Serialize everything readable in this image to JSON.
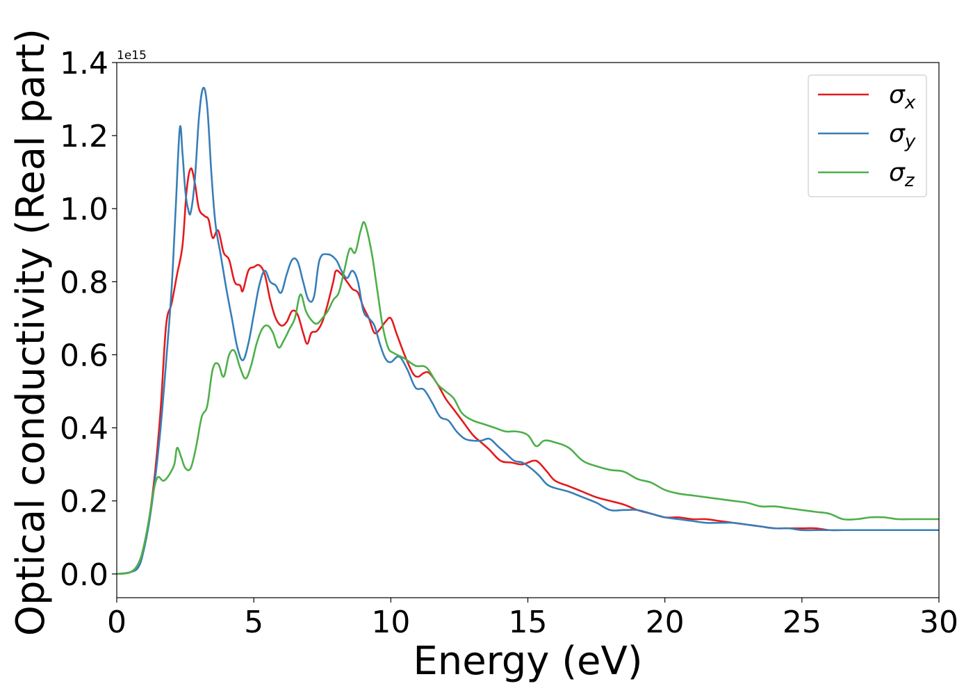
{
  "chart_data": {
    "type": "line",
    "xlabel": "Energy (eV)",
    "ylabel": "Optical conductivity (Real part)",
    "y_offset_label": "1e15",
    "xlim": [
      0,
      30
    ],
    "ylim": [
      -0.065,
      1.4
    ],
    "x_ticks": [
      0,
      5,
      10,
      15,
      20,
      25,
      30
    ],
    "y_ticks": [
      0.0,
      0.2,
      0.4,
      0.6,
      0.8,
      1.0,
      1.2,
      1.4
    ],
    "x_tick_labels": [
      "0",
      "5",
      "10",
      "15",
      "20",
      "25",
      "30"
    ],
    "y_tick_labels": [
      "0.0",
      "0.2",
      "0.4",
      "0.6",
      "0.8",
      "1.0",
      "1.2",
      "1.4"
    ],
    "grid": false,
    "legend_position": "top-right",
    "series": [
      {
        "name": "σ",
        "subscript": "x",
        "color": "#e41a1c",
        "points": [
          [
            0,
            0
          ],
          [
            0.5,
            0.005
          ],
          [
            0.8,
            0.03
          ],
          [
            1.0,
            0.08
          ],
          [
            1.2,
            0.16
          ],
          [
            1.4,
            0.28
          ],
          [
            1.6,
            0.45
          ],
          [
            1.8,
            0.68
          ],
          [
            2.0,
            0.74
          ],
          [
            2.2,
            0.82
          ],
          [
            2.4,
            0.9
          ],
          [
            2.55,
            1.05
          ],
          [
            2.7,
            1.11
          ],
          [
            2.85,
            1.07
          ],
          [
            3.0,
            1.0
          ],
          [
            3.2,
            0.98
          ],
          [
            3.35,
            0.97
          ],
          [
            3.5,
            0.92
          ],
          [
            3.7,
            0.94
          ],
          [
            3.9,
            0.88
          ],
          [
            4.1,
            0.86
          ],
          [
            4.3,
            0.8
          ],
          [
            4.5,
            0.79
          ],
          [
            4.6,
            0.775
          ],
          [
            4.8,
            0.83
          ],
          [
            5.0,
            0.84
          ],
          [
            5.2,
            0.845
          ],
          [
            5.4,
            0.82
          ],
          [
            5.6,
            0.75
          ],
          [
            5.8,
            0.7
          ],
          [
            6.0,
            0.68
          ],
          [
            6.2,
            0.69
          ],
          [
            6.4,
            0.72
          ],
          [
            6.6,
            0.71
          ],
          [
            6.8,
            0.66
          ],
          [
            6.95,
            0.63
          ],
          [
            7.1,
            0.66
          ],
          [
            7.3,
            0.665
          ],
          [
            7.5,
            0.69
          ],
          [
            7.7,
            0.74
          ],
          [
            7.9,
            0.8
          ],
          [
            8.0,
            0.83
          ],
          [
            8.2,
            0.82
          ],
          [
            8.4,
            0.8
          ],
          [
            8.6,
            0.78
          ],
          [
            8.8,
            0.77
          ],
          [
            9.0,
            0.73
          ],
          [
            9.2,
            0.7
          ],
          [
            9.4,
            0.66
          ],
          [
            9.6,
            0.67
          ],
          [
            9.8,
            0.69
          ],
          [
            10.0,
            0.7
          ],
          [
            10.2,
            0.66
          ],
          [
            10.5,
            0.6
          ],
          [
            10.8,
            0.55
          ],
          [
            11.0,
            0.54
          ],
          [
            11.2,
            0.55
          ],
          [
            11.4,
            0.55
          ],
          [
            11.7,
            0.52
          ],
          [
            12.0,
            0.48
          ],
          [
            12.3,
            0.45
          ],
          [
            12.6,
            0.42
          ],
          [
            13.0,
            0.38
          ],
          [
            13.3,
            0.36
          ],
          [
            13.6,
            0.34
          ],
          [
            14.0,
            0.31
          ],
          [
            14.4,
            0.305
          ],
          [
            14.8,
            0.3
          ],
          [
            15.2,
            0.31
          ],
          [
            15.4,
            0.305
          ],
          [
            15.7,
            0.28
          ],
          [
            16.0,
            0.255
          ],
          [
            16.5,
            0.24
          ],
          [
            17.0,
            0.225
          ],
          [
            17.5,
            0.21
          ],
          [
            18.0,
            0.2
          ],
          [
            18.5,
            0.19
          ],
          [
            19.0,
            0.175
          ],
          [
            19.5,
            0.165
          ],
          [
            20.0,
            0.155
          ],
          [
            20.5,
            0.155
          ],
          [
            21.0,
            0.15
          ],
          [
            21.5,
            0.15
          ],
          [
            22.0,
            0.145
          ],
          [
            22.5,
            0.14
          ],
          [
            23.0,
            0.135
          ],
          [
            23.5,
            0.13
          ],
          [
            24.0,
            0.125
          ],
          [
            24.5,
            0.125
          ],
          [
            25.0,
            0.125
          ],
          [
            25.5,
            0.125
          ],
          [
            26.0,
            0.12
          ],
          [
            26.5,
            0.12
          ],
          [
            27.0,
            0.12
          ],
          [
            27.5,
            0.12
          ],
          [
            28.0,
            0.12
          ],
          [
            28.5,
            0.12
          ],
          [
            29.0,
            0.12
          ],
          [
            29.5,
            0.12
          ],
          [
            30.0,
            0.12
          ]
        ]
      },
      {
        "name": "σ",
        "subscript": "y",
        "color": "#377eb8",
        "points": [
          [
            0,
            0
          ],
          [
            0.5,
            0.005
          ],
          [
            0.8,
            0.02
          ],
          [
            1.0,
            0.07
          ],
          [
            1.2,
            0.15
          ],
          [
            1.4,
            0.26
          ],
          [
            1.6,
            0.4
          ],
          [
            1.8,
            0.58
          ],
          [
            2.0,
            0.78
          ],
          [
            2.15,
            1.0
          ],
          [
            2.3,
            1.22
          ],
          [
            2.4,
            1.15
          ],
          [
            2.5,
            1.05
          ],
          [
            2.6,
            1.0
          ],
          [
            2.7,
            0.99
          ],
          [
            2.85,
            1.08
          ],
          [
            3.0,
            1.25
          ],
          [
            3.15,
            1.33
          ],
          [
            3.3,
            1.28
          ],
          [
            3.45,
            1.1
          ],
          [
            3.6,
            0.96
          ],
          [
            3.8,
            0.87
          ],
          [
            4.0,
            0.78
          ],
          [
            4.2,
            0.7
          ],
          [
            4.4,
            0.62
          ],
          [
            4.6,
            0.585
          ],
          [
            4.8,
            0.63
          ],
          [
            5.0,
            0.71
          ],
          [
            5.2,
            0.79
          ],
          [
            5.4,
            0.83
          ],
          [
            5.6,
            0.8
          ],
          [
            5.8,
            0.79
          ],
          [
            6.0,
            0.77
          ],
          [
            6.2,
            0.82
          ],
          [
            6.4,
            0.86
          ],
          [
            6.6,
            0.855
          ],
          [
            6.8,
            0.8
          ],
          [
            7.0,
            0.75
          ],
          [
            7.2,
            0.76
          ],
          [
            7.4,
            0.86
          ],
          [
            7.7,
            0.875
          ],
          [
            8.0,
            0.86
          ],
          [
            8.2,
            0.83
          ],
          [
            8.4,
            0.81
          ],
          [
            8.6,
            0.83
          ],
          [
            8.8,
            0.8
          ],
          [
            9.0,
            0.72
          ],
          [
            9.2,
            0.7
          ],
          [
            9.4,
            0.68
          ],
          [
            9.6,
            0.63
          ],
          [
            9.8,
            0.59
          ],
          [
            10.0,
            0.58
          ],
          [
            10.3,
            0.595
          ],
          [
            10.6,
            0.56
          ],
          [
            10.9,
            0.51
          ],
          [
            11.2,
            0.505
          ],
          [
            11.5,
            0.47
          ],
          [
            11.8,
            0.43
          ],
          [
            12.1,
            0.42
          ],
          [
            12.4,
            0.39
          ],
          [
            12.7,
            0.37
          ],
          [
            13.0,
            0.365
          ],
          [
            13.3,
            0.365
          ],
          [
            13.6,
            0.37
          ],
          [
            13.9,
            0.35
          ],
          [
            14.2,
            0.33
          ],
          [
            14.5,
            0.31
          ],
          [
            14.8,
            0.305
          ],
          [
            15.1,
            0.29
          ],
          [
            15.4,
            0.27
          ],
          [
            15.7,
            0.245
          ],
          [
            16.0,
            0.235
          ],
          [
            16.5,
            0.225
          ],
          [
            17.0,
            0.21
          ],
          [
            17.5,
            0.195
          ],
          [
            18.0,
            0.175
          ],
          [
            18.5,
            0.175
          ],
          [
            19.0,
            0.175
          ],
          [
            19.5,
            0.165
          ],
          [
            20.0,
            0.155
          ],
          [
            20.5,
            0.15
          ],
          [
            21.0,
            0.145
          ],
          [
            21.5,
            0.14
          ],
          [
            22.0,
            0.14
          ],
          [
            22.5,
            0.14
          ],
          [
            23.0,
            0.135
          ],
          [
            23.5,
            0.13
          ],
          [
            24.0,
            0.125
          ],
          [
            24.5,
            0.125
          ],
          [
            25.0,
            0.12
          ],
          [
            25.5,
            0.12
          ],
          [
            26.0,
            0.12
          ],
          [
            26.5,
            0.12
          ],
          [
            27.0,
            0.12
          ],
          [
            27.5,
            0.12
          ],
          [
            28.0,
            0.12
          ],
          [
            28.5,
            0.12
          ],
          [
            29.0,
            0.12
          ],
          [
            29.5,
            0.12
          ],
          [
            30.0,
            0.12
          ]
        ]
      },
      {
        "name": "σ",
        "subscript": "z",
        "color": "#4daf4a",
        "points": [
          [
            0,
            0
          ],
          [
            0.5,
            0.005
          ],
          [
            0.8,
            0.03
          ],
          [
            1.0,
            0.08
          ],
          [
            1.2,
            0.16
          ],
          [
            1.35,
            0.23
          ],
          [
            1.5,
            0.265
          ],
          [
            1.7,
            0.255
          ],
          [
            1.9,
            0.27
          ],
          [
            2.1,
            0.3
          ],
          [
            2.2,
            0.345
          ],
          [
            2.35,
            0.32
          ],
          [
            2.5,
            0.29
          ],
          [
            2.7,
            0.29
          ],
          [
            2.9,
            0.35
          ],
          [
            3.1,
            0.43
          ],
          [
            3.3,
            0.46
          ],
          [
            3.5,
            0.56
          ],
          [
            3.7,
            0.575
          ],
          [
            3.9,
            0.54
          ],
          [
            4.1,
            0.6
          ],
          [
            4.3,
            0.61
          ],
          [
            4.5,
            0.565
          ],
          [
            4.7,
            0.535
          ],
          [
            4.9,
            0.57
          ],
          [
            5.1,
            0.63
          ],
          [
            5.3,
            0.67
          ],
          [
            5.5,
            0.68
          ],
          [
            5.7,
            0.66
          ],
          [
            5.9,
            0.62
          ],
          [
            6.1,
            0.64
          ],
          [
            6.3,
            0.67
          ],
          [
            6.5,
            0.7
          ],
          [
            6.7,
            0.765
          ],
          [
            6.9,
            0.72
          ],
          [
            7.1,
            0.695
          ],
          [
            7.3,
            0.685
          ],
          [
            7.5,
            0.7
          ],
          [
            7.7,
            0.72
          ],
          [
            7.9,
            0.75
          ],
          [
            8.1,
            0.77
          ],
          [
            8.3,
            0.83
          ],
          [
            8.5,
            0.89
          ],
          [
            8.7,
            0.88
          ],
          [
            8.9,
            0.94
          ],
          [
            9.05,
            0.96
          ],
          [
            9.3,
            0.88
          ],
          [
            9.5,
            0.78
          ],
          [
            9.7,
            0.68
          ],
          [
            9.9,
            0.62
          ],
          [
            10.1,
            0.605
          ],
          [
            10.5,
            0.59
          ],
          [
            10.9,
            0.57
          ],
          [
            11.3,
            0.565
          ],
          [
            11.7,
            0.52
          ],
          [
            12.0,
            0.5
          ],
          [
            12.3,
            0.48
          ],
          [
            12.6,
            0.44
          ],
          [
            13.0,
            0.42
          ],
          [
            13.4,
            0.41
          ],
          [
            13.8,
            0.4
          ],
          [
            14.2,
            0.39
          ],
          [
            14.6,
            0.39
          ],
          [
            15.0,
            0.38
          ],
          [
            15.3,
            0.35
          ],
          [
            15.6,
            0.365
          ],
          [
            16.0,
            0.36
          ],
          [
            16.5,
            0.345
          ],
          [
            17.0,
            0.31
          ],
          [
            17.5,
            0.295
          ],
          [
            18.0,
            0.285
          ],
          [
            18.5,
            0.28
          ],
          [
            19.0,
            0.26
          ],
          [
            19.5,
            0.25
          ],
          [
            20.0,
            0.23
          ],
          [
            20.5,
            0.22
          ],
          [
            21.0,
            0.215
          ],
          [
            21.5,
            0.21
          ],
          [
            22.0,
            0.205
          ],
          [
            22.5,
            0.2
          ],
          [
            23.0,
            0.195
          ],
          [
            23.5,
            0.185
          ],
          [
            24.0,
            0.185
          ],
          [
            24.5,
            0.18
          ],
          [
            25.0,
            0.175
          ],
          [
            25.5,
            0.17
          ],
          [
            26.0,
            0.165
          ],
          [
            26.5,
            0.15
          ],
          [
            27.0,
            0.15
          ],
          [
            27.5,
            0.155
          ],
          [
            28.0,
            0.155
          ],
          [
            28.5,
            0.15
          ],
          [
            29.0,
            0.15
          ],
          [
            29.5,
            0.15
          ],
          [
            30.0,
            0.15
          ]
        ]
      }
    ]
  }
}
